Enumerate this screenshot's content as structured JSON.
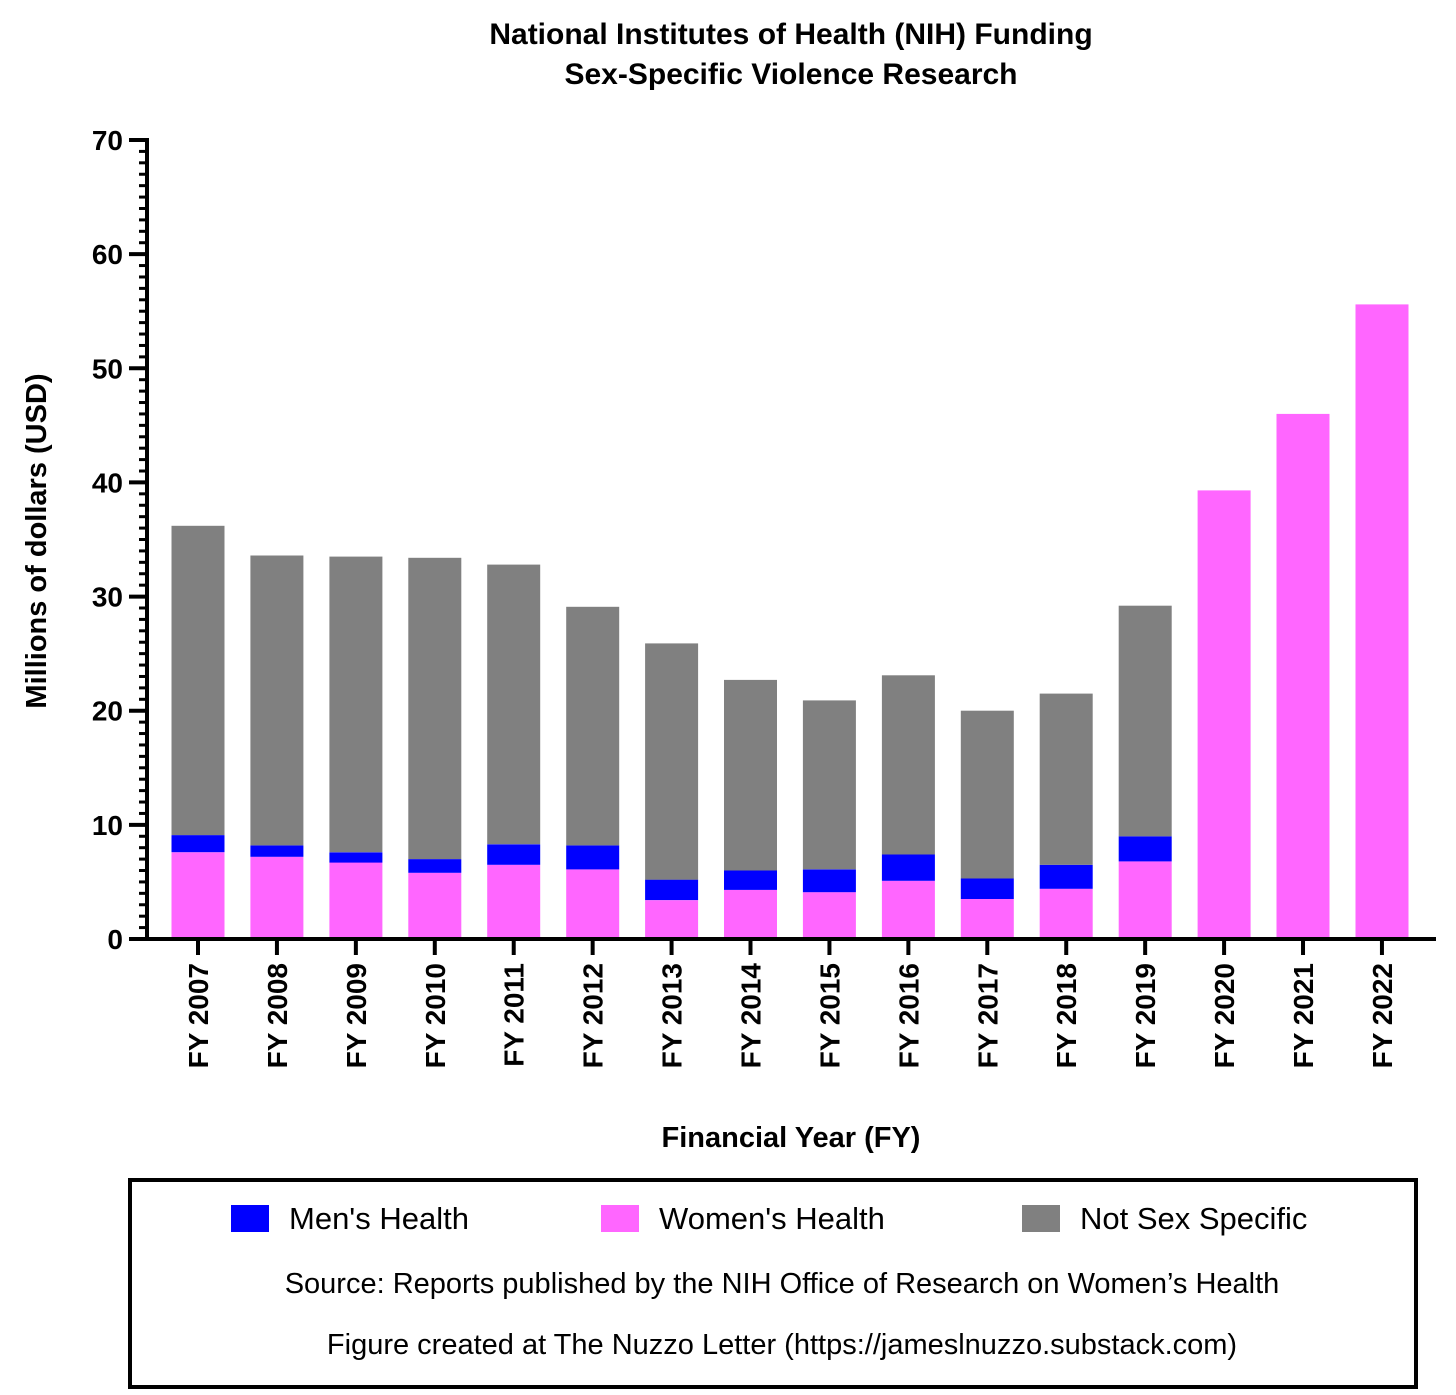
{
  "chart_data": {
    "type": "bar",
    "stacked": true,
    "title": [
      "National Institutes of Health (NIH) Funding",
      "Sex-Specific Violence Research"
    ],
    "xlabel": "Financial Year (FY)",
    "ylabel": "Millions of dollars (USD)",
    "ylim": [
      0,
      70
    ],
    "yticks": [
      "0",
      "10",
      "20",
      "30",
      "40",
      "50",
      "60",
      "70"
    ],
    "grid": false,
    "legend_position": "bottom",
    "categories": [
      "FY 2007",
      "FY 2008",
      "FY 2009",
      "FY 2010",
      "FY 2011",
      "FY 2012",
      "FY 2013",
      "FY 2014",
      "FY 2015",
      "FY 2016",
      "FY 2017",
      "FY 2018",
      "FY 2019",
      "FY 2020",
      "FY 2021",
      "FY 2022"
    ],
    "series": [
      {
        "name": "Women's Health",
        "color": "#ff66ff",
        "values": [
          7.6,
          7.2,
          6.7,
          5.8,
          6.5,
          6.1,
          3.4,
          4.3,
          4.1,
          5.1,
          3.5,
          4.4,
          6.8,
          39.3,
          46.0,
          55.6
        ]
      },
      {
        "name": "Men's Health",
        "color": "#0000ff",
        "values": [
          1.5,
          1.0,
          0.9,
          1.2,
          1.8,
          2.1,
          1.8,
          1.7,
          2.0,
          2.3,
          1.8,
          2.1,
          2.2,
          0,
          0,
          0
        ]
      },
      {
        "name": "Not Sex Specific",
        "color": "#808080",
        "values": [
          27.1,
          25.4,
          25.9,
          26.4,
          24.5,
          20.9,
          20.7,
          16.7,
          14.8,
          15.7,
          14.7,
          15.0,
          20.2,
          0,
          0,
          0
        ]
      }
    ]
  },
  "legend": {
    "items": [
      {
        "label": "Men's Health",
        "color": "#0000ff"
      },
      {
        "label": "Women's Health",
        "color": "#ff66ff"
      },
      {
        "label": "Not Sex Specific",
        "color": "#808080"
      }
    ],
    "source_text": "Source: Reports published by the NIH Office of Research on Women’s Health",
    "credit_text": "Figure created at The Nuzzo Letter (https://jameslnuzzo.substack.com)"
  }
}
